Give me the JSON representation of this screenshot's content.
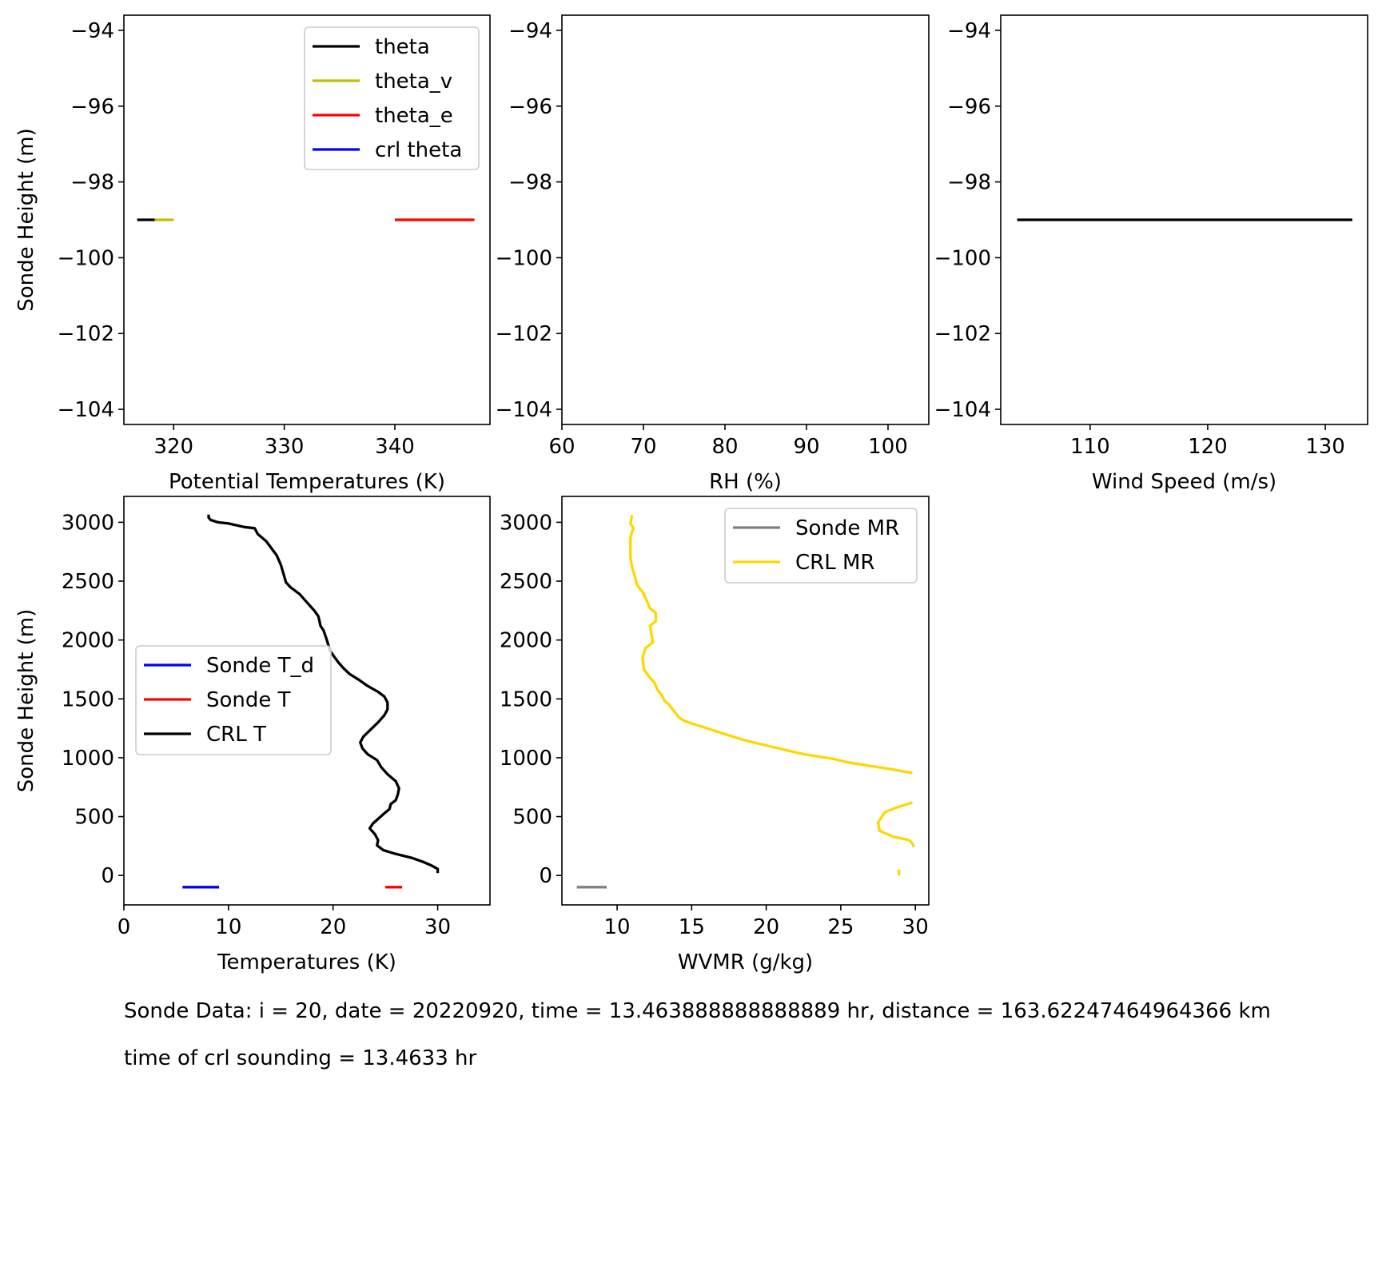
{
  "chart_data": [
    {
      "type": "line",
      "xlabel": "Potential Temperatures (K)",
      "ylabel": "Sonde Height (m)",
      "xlim": [
        315.5,
        348.6
      ],
      "ylim": [
        -104.4,
        -93.6
      ],
      "xticks": [
        320,
        330,
        340
      ],
      "yticks": [
        -94,
        -96,
        -98,
        -100,
        -102,
        -104
      ],
      "legend_position": "upper right",
      "series": [
        {
          "name": "theta",
          "color": "#000000",
          "x": [
            316.7,
            318.3
          ],
          "y": [
            -99.0,
            -99.0
          ]
        },
        {
          "name": "theta_v",
          "color": "#bfbf00",
          "x": [
            318.3,
            320.0
          ],
          "y": [
            -99.0,
            -99.0
          ]
        },
        {
          "name": "theta_e",
          "color": "#ff0000",
          "x": [
            340.0,
            347.2
          ],
          "y": [
            -99.0,
            -99.0
          ]
        },
        {
          "name": "crl theta",
          "color": "#0000ff",
          "x": [],
          "y": []
        }
      ]
    },
    {
      "type": "line",
      "xlabel": "RH (%)",
      "ylabel": "",
      "xlim": [
        60,
        105
      ],
      "ylim": [
        -104.4,
        -93.6
      ],
      "xticks": [
        60,
        70,
        80,
        90,
        100
      ],
      "yticks": [
        -94,
        -96,
        -98,
        -100,
        -102,
        -104
      ],
      "series": []
    },
    {
      "type": "line",
      "xlabel": "Wind Speed (m/s)",
      "ylabel": "",
      "xlim": [
        102.4,
        133.6
      ],
      "ylim": [
        -104.4,
        -93.6
      ],
      "xticks": [
        110,
        120,
        130
      ],
      "yticks": [
        -94,
        -96,
        -98,
        -100,
        -102,
        -104
      ],
      "series": [
        {
          "color": "#000000",
          "x": [
            103.8,
            132.3
          ],
          "y": [
            -99.0,
            -99.0
          ]
        }
      ]
    },
    {
      "type": "line",
      "xlabel": "Temperatures (K)",
      "ylabel": "Sonde Height (m)",
      "xlim": [
        0,
        35
      ],
      "ylim": [
        -250,
        3220
      ],
      "xticks": [
        0,
        10,
        20,
        30
      ],
      "yticks": [
        0,
        500,
        1000,
        1500,
        2000,
        2500,
        3000
      ],
      "legend_position": "center left",
      "series": [
        {
          "name": "Sonde T_d",
          "color": "#0000ff",
          "x": [
            5.6,
            9.1
          ],
          "y": [
            -99,
            -99
          ]
        },
        {
          "name": "Sonde T",
          "color": "#ff0000",
          "x": [
            25.0,
            26.6
          ],
          "y": [
            -99,
            -99
          ]
        },
        {
          "name": "CRL T",
          "color": "#000000",
          "x": [
            30.0,
            30.0,
            29.4,
            28.6,
            27.5,
            25.9,
            24.8,
            24.2,
            24.3,
            24.0,
            23.5,
            23.8,
            24.3,
            24.8,
            25.4,
            25.5,
            26.0,
            26.2,
            26.3,
            26.0,
            25.2,
            24.6,
            24.2,
            23.3,
            22.8,
            22.6,
            22.9,
            23.6,
            24.3,
            24.9,
            25.2,
            25.2,
            24.9,
            24.3,
            23.3,
            22.5,
            21.6,
            21.0,
            20.5,
            20.1,
            19.7,
            19.4,
            19.1,
            18.8,
            18.6,
            18.2,
            17.7,
            16.8,
            15.9,
            15.5,
            15.4,
            15.2,
            15.0,
            14.6,
            14.1,
            13.6,
            12.8,
            12.5,
            11.5,
            10.0,
            9.0,
            8.3,
            8.1,
            8.1
          ],
          "y": [
            20,
            55,
            85,
            115,
            150,
            185,
            215,
            255,
            300,
            350,
            400,
            440,
            480,
            520,
            565,
            605,
            640,
            690,
            740,
            800,
            860,
            920,
            980,
            1030,
            1080,
            1130,
            1180,
            1240,
            1300,
            1360,
            1410,
            1470,
            1520,
            1560,
            1610,
            1660,
            1710,
            1760,
            1810,
            1860,
            1910,
            2000,
            2080,
            2120,
            2200,
            2250,
            2300,
            2390,
            2450,
            2490,
            2520,
            2580,
            2640,
            2720,
            2780,
            2840,
            2900,
            2950,
            2960,
            2990,
            3000,
            3020,
            3040,
            3065
          ]
        }
      ]
    },
    {
      "type": "line",
      "xlabel": "WVMR (g/kg)",
      "ylabel": "",
      "xlim": [
        6.3,
        30.9
      ],
      "ylim": [
        -250,
        3220
      ],
      "xticks": [
        10,
        15,
        20,
        25,
        30
      ],
      "yticks": [
        0,
        500,
        1000,
        1500,
        2000,
        2500,
        3000
      ],
      "legend_position": "upper right",
      "series": [
        {
          "name": "Sonde MR",
          "color": "#808080",
          "x": [
            7.3,
            9.3
          ],
          "y": [
            -99,
            -99
          ]
        },
        {
          "name": "CRL MR",
          "color": "#ffd700",
          "segments": [
            {
              "x": [
                28.9,
                28.9
              ],
              "y": [
                0,
                50
              ]
            },
            {
              "x": [
                29.9,
                29.8,
                29.6
              ],
              "y": [
                240,
                270,
                300
              ]
            },
            {
              "x": [
                29.6,
                28.5,
                27.6,
                27.5,
                27.8,
                28.0,
                28.8,
                29.8
              ],
              "y": [
                300,
                330,
                380,
                450,
                510,
                540,
                580,
                620
              ]
            },
            {
              "x": [
                29.8,
                28.5,
                27.0,
                25.5,
                24.5,
                23.5,
                22.5,
                21.5,
                20.5,
                19.5,
                18.5,
                17.5,
                16.5,
                15.8,
                15.0,
                14.4,
                14.1,
                13.8,
                13.5,
                13.2,
                13.0,
                12.7,
                12.5,
                12.2,
                11.8,
                11.7,
                11.9,
                12.4,
                12.3,
                12.2,
                12.6,
                12.6,
                12.2,
                11.9,
                11.7,
                11.5,
                11.3,
                11.2,
                11.0,
                10.9,
                10.9,
                10.9,
                11.0,
                11.1,
                10.9,
                11.0
              ],
              "y": [
                870,
                900,
                930,
                960,
                990,
                1010,
                1030,
                1060,
                1090,
                1120,
                1150,
                1190,
                1230,
                1260,
                1290,
                1320,
                1350,
                1400,
                1450,
                1480,
                1530,
                1580,
                1640,
                1680,
                1750,
                1850,
                1930,
                1980,
                2050,
                2120,
                2160,
                2230,
                2270,
                2360,
                2410,
                2440,
                2480,
                2540,
                2620,
                2700,
                2800,
                2870,
                2920,
                2950,
                2990,
                3060
              ]
            }
          ]
        }
      ]
    }
  ],
  "info": {
    "sonde_line": "Sonde Data: i = 20, date = 20220920, time = 13.463888888888889 hr, distance = 163.62247464964366 km",
    "crl_line": "time of crl sounding = 13.4633 hr"
  }
}
